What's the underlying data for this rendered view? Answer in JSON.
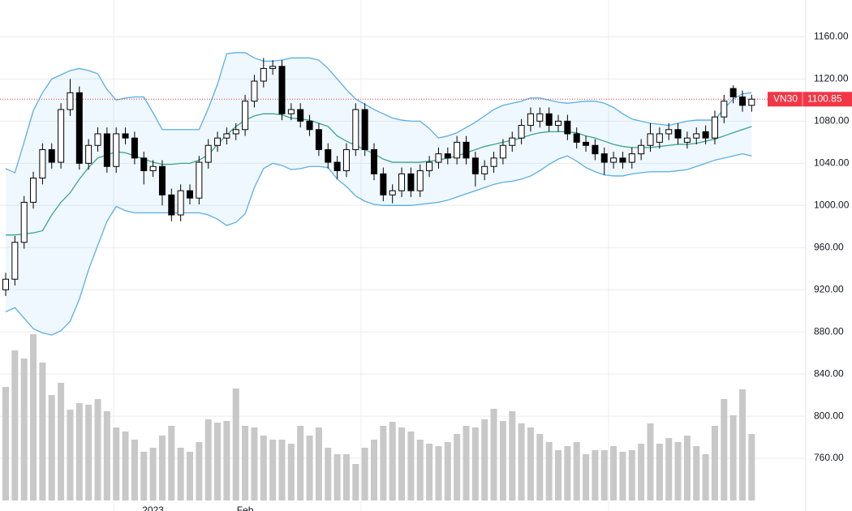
{
  "chart_data": {
    "type": "candlestick",
    "categories": [
      null,
      null,
      null,
      null,
      null,
      null,
      null,
      null,
      null,
      null,
      null,
      null,
      null,
      null,
      null,
      null,
      "2023",
      null,
      null,
      null,
      null,
      null,
      null,
      null,
      null,
      null,
      "Feb",
      null,
      null,
      null,
      null,
      null,
      null,
      null,
      null,
      null,
      null,
      null,
      null,
      null,
      null,
      null,
      null,
      null,
      null,
      null,
      null,
      null,
      null,
      null,
      null,
      null,
      null,
      null,
      null,
      null,
      null,
      null,
      null,
      null,
      null,
      null,
      null,
      null,
      null,
      null,
      null,
      null,
      null,
      null,
      null,
      null,
      null,
      null,
      null,
      null,
      null,
      null,
      null,
      null,
      null,
      null
    ],
    "open": [
      920,
      930,
      965,
      1003,
      1026,
      1053,
      1041,
      1091,
      1107,
      1040,
      1057,
      1068,
      1037,
      1068,
      1064,
      1045,
      1033,
      1037,
      1010,
      991,
      1014,
      1007,
      1041,
      1057,
      1064,
      1068,
      1072,
      1099,
      1118,
      1130,
      1132,
      1087,
      1091,
      1080,
      1072,
      1053,
      1041,
      1033,
      1053,
      1091,
      1053,
      1030,
      1010,
      1014,
      1030,
      1014,
      1033,
      1041,
      1049,
      1045,
      1060,
      1045,
      1030,
      1037,
      1045,
      1057,
      1064,
      1076,
      1080,
      1087,
      1076,
      1080,
      1068,
      1060,
      1057,
      1049,
      1041,
      1045,
      1041,
      1049,
      1057,
      1060,
      1068,
      1072,
      1060,
      1064,
      1070,
      1064,
      1084,
      1111,
      1103,
      1095
    ],
    "high": [
      936,
      971,
      1009,
      1032,
      1059,
      1059,
      1097,
      1120,
      1113,
      1063,
      1074,
      1074,
      1074,
      1074,
      1070,
      1051,
      1043,
      1043,
      1016,
      1020,
      1020,
      1047,
      1063,
      1070,
      1074,
      1078,
      1105,
      1124,
      1140,
      1138,
      1138,
      1097,
      1097,
      1086,
      1078,
      1059,
      1047,
      1059,
      1097,
      1097,
      1059,
      1036,
      1020,
      1036,
      1036,
      1039,
      1047,
      1055,
      1055,
      1066,
      1066,
      1051,
      1043,
      1051,
      1063,
      1070,
      1082,
      1093,
      1093,
      1093,
      1086,
      1086,
      1074,
      1066,
      1063,
      1055,
      1051,
      1051,
      1055,
      1063,
      1078,
      1074,
      1078,
      1078,
      1070,
      1074,
      1076,
      1090,
      1105,
      1114,
      1109,
      1105
    ],
    "low": [
      914,
      924,
      959,
      997,
      1020,
      1035,
      1035,
      1085,
      1034,
      1034,
      1051,
      1031,
      1031,
      1058,
      1039,
      1020,
      1027,
      1000,
      985,
      985,
      1001,
      1001,
      1035,
      1051,
      1058,
      1062,
      1066,
      1093,
      1112,
      1124,
      1081,
      1081,
      1074,
      1066,
      1047,
      1035,
      1025,
      1027,
      1047,
      1047,
      1024,
      1004,
      1002,
      1008,
      1008,
      1008,
      1027,
      1035,
      1039,
      1039,
      1039,
      1018,
      1024,
      1031,
      1039,
      1051,
      1058,
      1070,
      1074,
      1070,
      1070,
      1062,
      1054,
      1051,
      1043,
      1029,
      1035,
      1035,
      1035,
      1043,
      1051,
      1054,
      1062,
      1058,
      1054,
      1058,
      1058,
      1058,
      1078,
      1097,
      1089,
      1089
    ],
    "close": [
      930,
      965,
      1003,
      1026,
      1053,
      1041,
      1091,
      1107,
      1040,
      1057,
      1068,
      1037,
      1068,
      1064,
      1045,
      1033,
      1037,
      1010,
      991,
      1014,
      1007,
      1041,
      1057,
      1064,
      1068,
      1072,
      1099,
      1118,
      1130,
      1132,
      1087,
      1091,
      1080,
      1072,
      1053,
      1041,
      1033,
      1053,
      1091,
      1053,
      1030,
      1010,
      1014,
      1030,
      1014,
      1033,
      1041,
      1049,
      1045,
      1060,
      1045,
      1030,
      1037,
      1045,
      1057,
      1064,
      1076,
      1087,
      1087,
      1076,
      1080,
      1068,
      1060,
      1057,
      1049,
      1041,
      1045,
      1041,
      1049,
      1057,
      1068,
      1068,
      1072,
      1064,
      1064,
      1068,
      1064,
      1084,
      1099,
      1103,
      1095,
      1100.85
    ],
    "volume": [
      140,
      185,
      175,
      205,
      170,
      130,
      145,
      112,
      120,
      118,
      125,
      110,
      90,
      85,
      75,
      60,
      65,
      80,
      92,
      65,
      60,
      72,
      100,
      96,
      98,
      138,
      92,
      90,
      80,
      75,
      75,
      70,
      92,
      80,
      90,
      65,
      57,
      57,
      45,
      65,
      75,
      92,
      97,
      90,
      85,
      75,
      70,
      67,
      72,
      82,
      92,
      90,
      100,
      113,
      98,
      110,
      95,
      90,
      82,
      72,
      62,
      67,
      72,
      57,
      62,
      62,
      67,
      60,
      62,
      70,
      95,
      70,
      77,
      72,
      80,
      67,
      57,
      92,
      125,
      105,
      137,
      82
    ],
    "up_color": "#ffffff",
    "down_color": "#000000",
    "wick_color": "#000000",
    "volume_color": "#c8c8c8",
    "band_fill": "#2196f3",
    "series": [
      {
        "color": "#5aaee6",
        "values": [
          1035,
          1031,
          1060,
          1090,
          1107,
          1120,
          1124,
          1128,
          1130,
          1128,
          1125,
          1110,
          1100,
          1102,
          1103,
          1103,
          1088,
          1072,
          1072,
          1072,
          1072,
          1072,
          1092,
          1115,
          1144,
          1145,
          1145,
          1140,
          1137,
          1137,
          1138,
          1140,
          1140,
          1140,
          1138,
          1130,
          1120,
          1110,
          1101,
          1096,
          1091,
          1087,
          1083,
          1081,
          1080,
          1080,
          1073,
          1064,
          1066,
          1069,
          1074,
          1079,
          1085,
          1091,
          1095,
          1097,
          1099,
          1102,
          1102,
          1100,
          1098,
          1097,
          1098,
          1099,
          1099,
          1097,
          1093,
          1087,
          1082,
          1080,
          1078,
          1077,
          1076,
          1078,
          1080,
          1081,
          1081,
          1081,
          1092,
          1101,
          1106,
          1107
        ]
      },
      {
        "color": "#3aa58e",
        "values": [
          972,
          972,
          973,
          974,
          976,
          991,
          1003,
          1012,
          1025,
          1036,
          1045,
          1048,
          1051,
          1050,
          1047,
          1044,
          1041,
          1039,
          1039,
          1040,
          1040,
          1043,
          1048,
          1058,
          1067,
          1075,
          1081,
          1085,
          1087,
          1087,
          1086,
          1083,
          1082,
          1081,
          1078,
          1075,
          1066,
          1061,
          1057,
          1053,
          1049,
          1044,
          1041,
          1041,
          1041,
          1041,
          1042,
          1043,
          1045,
          1047,
          1050,
          1053,
          1056,
          1058,
          1060,
          1062,
          1064,
          1067,
          1069,
          1070,
          1070,
          1070,
          1069,
          1066,
          1064,
          1061,
          1058,
          1056,
          1055,
          1055,
          1055,
          1056,
          1057,
          1058,
          1058,
          1059,
          1061,
          1063,
          1066,
          1069,
          1072,
          1075
        ]
      },
      {
        "color": "#5aaee6",
        "values": [
          899,
          903,
          893,
          883,
          879,
          877,
          881,
          890,
          911,
          939,
          962,
          985,
          999,
          995,
          993,
          993,
          993,
          993,
          993,
          993,
          993,
          993,
          991,
          987,
          981,
          984,
          992,
          1017,
          1035,
          1040,
          1038,
          1034,
          1035,
          1037,
          1037,
          1036,
          1025,
          1018,
          1009,
          1004,
          1001,
          1000,
          1000,
          1000,
          1000,
          1001,
          1002,
          1003,
          1005,
          1008,
          1011,
          1014,
          1017,
          1020,
          1022,
          1023,
          1025,
          1028,
          1033,
          1039,
          1044,
          1047,
          1042,
          1036,
          1032,
          1029,
          1028,
          1028,
          1030,
          1031,
          1032,
          1032,
          1032,
          1033,
          1034,
          1037,
          1040,
          1043,
          1045,
          1047,
          1049,
          1047
        ]
      }
    ],
    "ylim": [
      710,
      1195
    ],
    "yticks": [
      {
        "value": 760,
        "label": "760.00"
      },
      {
        "value": 800,
        "label": "800.00"
      },
      {
        "value": 840,
        "label": "840.00"
      },
      {
        "value": 880,
        "label": "880.00"
      },
      {
        "value": 920,
        "label": "920.00"
      },
      {
        "value": 960,
        "label": "960.00"
      },
      {
        "value": 1000,
        "label": "1000.00"
      },
      {
        "value": 1040,
        "label": "1040.00"
      },
      {
        "value": 1080,
        "label": "1080.00"
      },
      {
        "value": 1120,
        "label": "1120.00"
      },
      {
        "value": 1160,
        "label": "1160.00"
      }
    ],
    "grid": true,
    "last_price": {
      "label": "VN30",
      "value": 1100.85,
      "color": "#f23645"
    }
  }
}
